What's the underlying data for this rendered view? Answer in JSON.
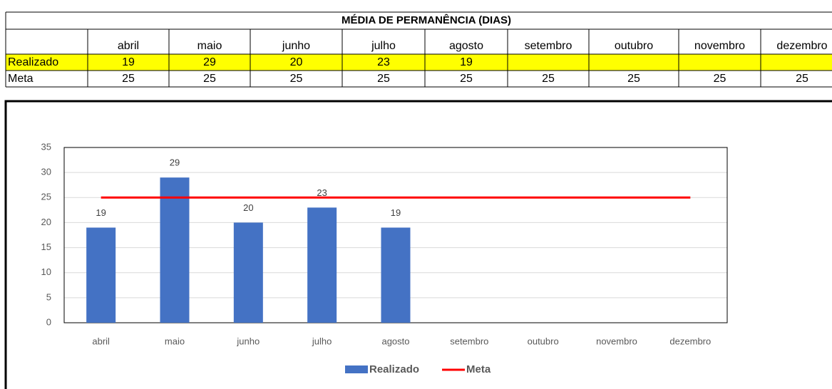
{
  "table_title": "MÉDIA DE PERMANÊNCIA (DIAS)",
  "chart_data": {
    "type": "bar",
    "categories": [
      "abril",
      "maio",
      "junho",
      "julho",
      "agosto",
      "setembro",
      "outubro",
      "novembro",
      "dezembro"
    ],
    "series": [
      {
        "name": "Realizado",
        "type": "bar",
        "color": "#4472c4",
        "values": [
          19,
          29,
          20,
          23,
          19,
          null,
          null,
          null,
          null
        ]
      },
      {
        "name": "Meta",
        "type": "line",
        "color": "#ff0000",
        "values": [
          25,
          25,
          25,
          25,
          25,
          25,
          25,
          25,
          25
        ]
      }
    ],
    "ylim": [
      0,
      35
    ],
    "yticks": [
      0,
      5,
      10,
      15,
      20,
      25,
      30,
      35
    ],
    "grid": true,
    "legend": "bottom"
  }
}
